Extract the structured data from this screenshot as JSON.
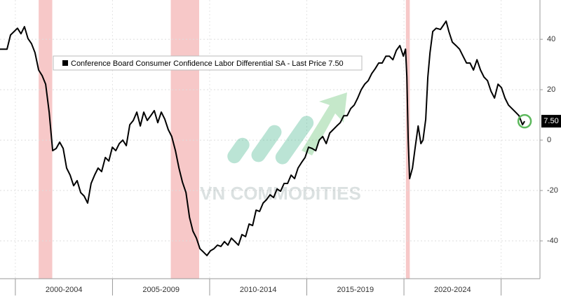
{
  "chart_data": {
    "type": "line",
    "legend": "Conference Board Consumer Confidence Labor Differential SA - Last Price 7.50",
    "last_price_label": "7.50",
    "watermark": "VN COMMODITIES",
    "xlim": [
      1999.21,
      2027.0
    ],
    "ylim": [
      -55,
      55.6
    ],
    "xticks": [
      2000,
      2005,
      2010,
      2015,
      2020,
      2025
    ],
    "period_labels": [
      "2000-2004",
      "2005-2009",
      "2010-2014",
      "2015-2019",
      "2020-2024"
    ],
    "yticks": [
      -40,
      -20,
      0,
      20,
      40
    ],
    "recessions": [
      [
        2001.2,
        2001.9
      ],
      [
        2008.0,
        2009.46
      ],
      [
        2020.1,
        2020.3
      ]
    ],
    "recession_color": "#f4b6b6",
    "grid": true,
    "series": [
      {
        "name": "Conference Board Consumer Confidence Labor Differential SA",
        "color": "#000000",
        "x": [
          1999.21,
          1999.57,
          1999.75,
          2000.11,
          2000.29,
          2000.47,
          2000.65,
          2000.83,
          2001.01,
          2001.2,
          2001.38,
          2001.56,
          2001.74,
          2001.92,
          2002.1,
          2002.28,
          2002.46,
          2002.64,
          2002.82,
          2003.0,
          2003.18,
          2003.36,
          2003.54,
          2003.72,
          2003.9,
          2004.08,
          2004.26,
          2004.44,
          2004.63,
          2004.81,
          2004.99,
          2005.17,
          2005.35,
          2005.53,
          2005.71,
          2005.89,
          2006.07,
          2006.25,
          2006.43,
          2006.61,
          2006.79,
          2006.97,
          2007.15,
          2007.33,
          2007.51,
          2007.69,
          2007.87,
          2008.05,
          2008.24,
          2008.42,
          2008.6,
          2008.78,
          2008.96,
          2009.14,
          2009.32,
          2009.5,
          2009.68,
          2009.86,
          2010.04,
          2010.22,
          2010.4,
          2010.58,
          2010.76,
          2010.94,
          2011.12,
          2011.3,
          2011.48,
          2011.66,
          2011.85,
          2012.03,
          2012.21,
          2012.39,
          2012.57,
          2012.75,
          2012.93,
          2013.11,
          2013.29,
          2013.47,
          2013.65,
          2013.83,
          2014.01,
          2014.19,
          2014.37,
          2014.55,
          2014.73,
          2014.91,
          2015.09,
          2015.27,
          2015.46,
          2015.64,
          2015.82,
          2016.0,
          2016.18,
          2016.36,
          2016.54,
          2016.72,
          2016.9,
          2017.08,
          2017.26,
          2017.44,
          2017.62,
          2017.8,
          2017.98,
          2018.16,
          2018.34,
          2018.52,
          2018.7,
          2018.88,
          2019.07,
          2019.25,
          2019.43,
          2019.61,
          2019.79,
          2019.97,
          2020.08,
          2020.15,
          2020.22,
          2020.29,
          2020.44,
          2020.58,
          2020.73,
          2020.87,
          2020.98,
          2021.12,
          2021.23,
          2021.34,
          2021.48,
          2021.66,
          2021.88,
          2022.03,
          2022.17,
          2022.31,
          2022.49,
          2022.68,
          2022.86,
          2023.04,
          2023.22,
          2023.4,
          2023.58,
          2023.76,
          2023.94,
          2024.12,
          2024.3,
          2024.48,
          2024.66,
          2024.84,
          2025.02,
          2025.2,
          2025.38,
          2025.56,
          2025.74,
          2025.92,
          2026.1,
          2026.21
        ],
        "values": [
          36.1,
          36.1,
          41.7,
          44.4,
          42.2,
          45.0,
          40.3,
          38.3,
          34.7,
          27.8,
          25.6,
          22.2,
          11.1,
          -4.2,
          -3.3,
          -0.8,
          -3.3,
          -11.1,
          -13.9,
          -18.1,
          -16.1,
          -20.8,
          -22.2,
          -25.0,
          -17.2,
          -13.9,
          -11.1,
          -12.5,
          -6.9,
          -8.3,
          -2.8,
          -4.2,
          -1.4,
          0,
          -2.2,
          6.1,
          7.8,
          11.1,
          5.6,
          11.1,
          7.8,
          9.7,
          11.7,
          6.9,
          11.1,
          8.3,
          4.2,
          1.4,
          -4.2,
          -11.1,
          -16.7,
          -20.8,
          -30.6,
          -36.1,
          -38.9,
          -43.1,
          -44.4,
          -45.8,
          -43.9,
          -43.1,
          -41.7,
          -42.2,
          -40.3,
          -41.7,
          -38.9,
          -40.3,
          -41.7,
          -37.5,
          -38.3,
          -33.3,
          -33.9,
          -27.8,
          -28.3,
          -25.0,
          -23.6,
          -21.7,
          -22.8,
          -19.4,
          -20.3,
          -17.2,
          -17.2,
          -13.9,
          -15.3,
          -11.1,
          -8.9,
          -6.9,
          -2.8,
          -3.3,
          -4.2,
          0,
          1.4,
          -1.4,
          2.8,
          4.2,
          5.6,
          6.9,
          9.7,
          9.7,
          12.5,
          13.9,
          16.7,
          20.0,
          22.2,
          23.6,
          26.4,
          28.3,
          30.6,
          30.6,
          33.3,
          33.3,
          31.9,
          35.6,
          37.5,
          33.3,
          36.1,
          25.0,
          0,
          -15.3,
          -11.1,
          -2.8,
          5.6,
          -1.4,
          0,
          8.3,
          25.0,
          34.7,
          43.1,
          44.4,
          43.9,
          45.6,
          47.2,
          43.1,
          38.9,
          37.5,
          36.1,
          33.3,
          30.6,
          30.6,
          27.8,
          31.9,
          27.8,
          25.0,
          23.6,
          19.4,
          16.7,
          22.2,
          20.8,
          16.7,
          13.9,
          12.5,
          11.1,
          9.7,
          6.1,
          7.5
        ]
      }
    ]
  }
}
